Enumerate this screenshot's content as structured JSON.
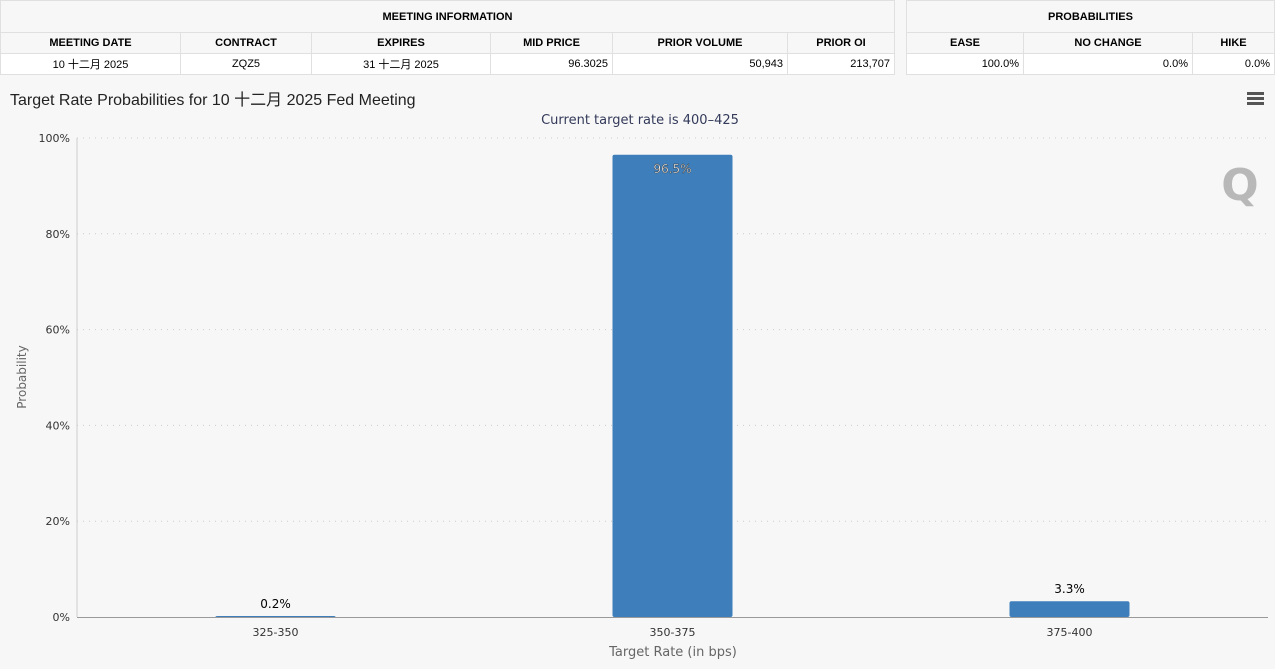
{
  "meeting_info": {
    "group_header": "MEETING INFORMATION",
    "columns": [
      "MEETING DATE",
      "CONTRACT",
      "EXPIRES",
      "MID PRICE",
      "PRIOR VOLUME",
      "PRIOR OI"
    ],
    "row": [
      "10 十二月 2025",
      "ZQZ5",
      "31 十二月 2025",
      "96.3025",
      "50,943",
      "213,707"
    ]
  },
  "probabilities": {
    "group_header": "PROBABILITIES",
    "columns": [
      "EASE",
      "NO CHANGE",
      "HIKE"
    ],
    "row": [
      "100.0%",
      "0.0%",
      "0.0%"
    ]
  },
  "chart_title": "Target Rate Probabilities for 10 十二月 2025 Fed Meeting",
  "menu_icon": "hamburger-menu-icon",
  "watermark": "Q",
  "chart_data": {
    "type": "bar",
    "subtitle": "Current target rate is 400–425",
    "categories": [
      "325-350",
      "350-375",
      "375-400"
    ],
    "values": [
      0.2,
      96.5,
      3.3
    ],
    "data_labels": [
      "0.2%",
      "96.5%",
      "3.3%"
    ],
    "xlabel": "Target Rate (in bps)",
    "ylabel": "Probability",
    "ylim": [
      0,
      100
    ],
    "yticks": [
      "0%",
      "20%",
      "40%",
      "60%",
      "80%",
      "100%"
    ],
    "grid": true,
    "bar_color": "#3d7ebb"
  }
}
